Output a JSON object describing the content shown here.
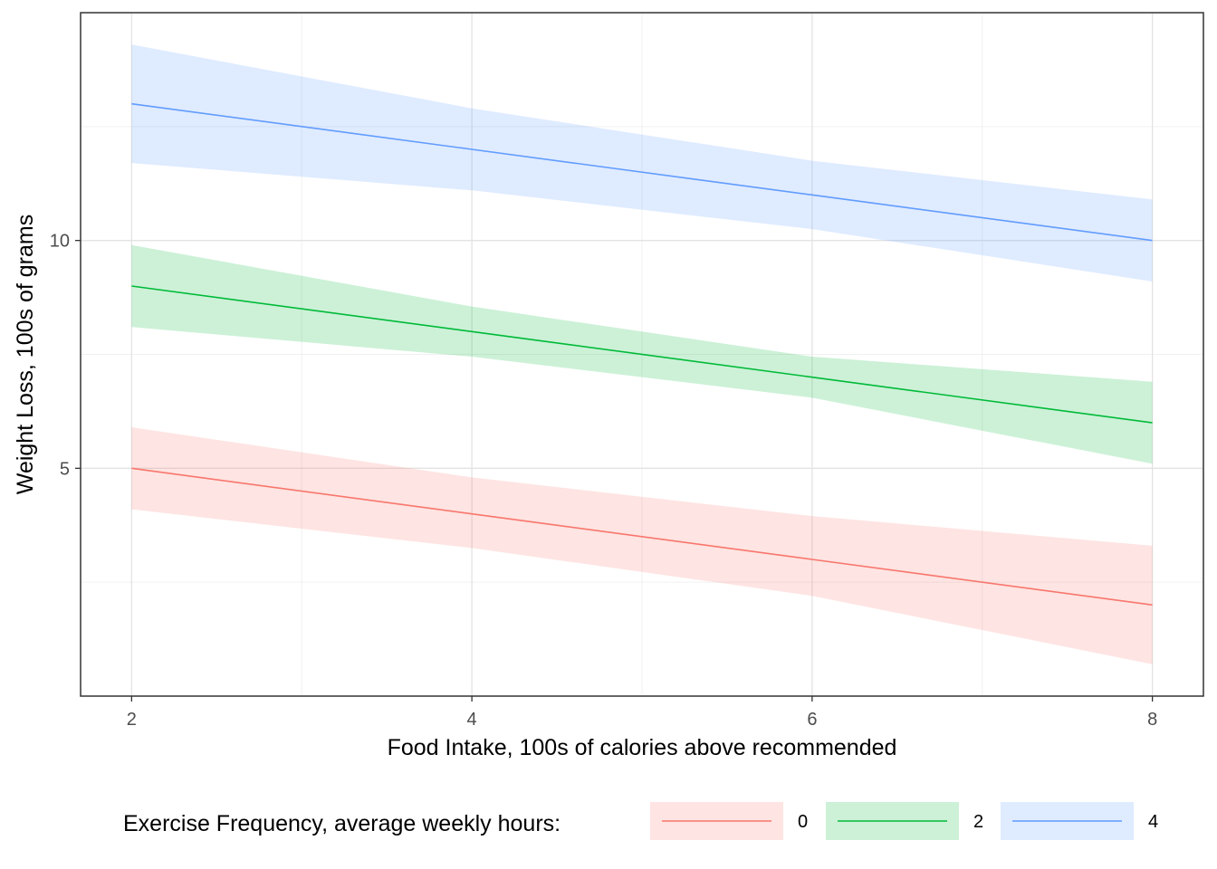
{
  "chart_data": {
    "type": "line",
    "xlabel": "Food Intake, 100s of calories above recommended",
    "ylabel": "Weight Loss, 100s of grams",
    "xlim": [
      1.7,
      8.3
    ],
    "ylim": [
      0.0,
      15.0
    ],
    "x_ticks": [
      2,
      4,
      6,
      8
    ],
    "x_minor": [
      3,
      5,
      7
    ],
    "y_ticks": [
      5,
      10
    ],
    "y_minor": [
      2.5,
      7.5,
      12.5
    ],
    "grid": true,
    "legend": {
      "title": "Exercise Frequency, average weekly hours:",
      "position": "bottom"
    },
    "series": [
      {
        "name": "0",
        "color": "#F8766D",
        "x": [
          2,
          4,
          6,
          8
        ],
        "y": [
          5.0,
          4.0,
          3.0,
          2.0
        ],
        "lower": [
          4.1,
          3.25,
          2.2,
          0.7
        ],
        "upper": [
          5.9,
          4.8,
          3.95,
          3.3
        ]
      },
      {
        "name": "2",
        "color": "#00BA38",
        "x": [
          2,
          4,
          6,
          8
        ],
        "y": [
          9.0,
          8.0,
          7.0,
          6.0
        ],
        "lower": [
          8.1,
          7.45,
          6.55,
          5.1
        ],
        "upper": [
          9.9,
          8.55,
          7.45,
          6.9
        ]
      },
      {
        "name": "4",
        "color": "#619CFF",
        "x": [
          2,
          4,
          6,
          8
        ],
        "y": [
          13.0,
          12.0,
          11.0,
          10.0
        ],
        "lower": [
          11.7,
          11.1,
          10.25,
          9.1
        ],
        "upper": [
          14.3,
          12.9,
          11.75,
          10.9
        ]
      }
    ]
  }
}
